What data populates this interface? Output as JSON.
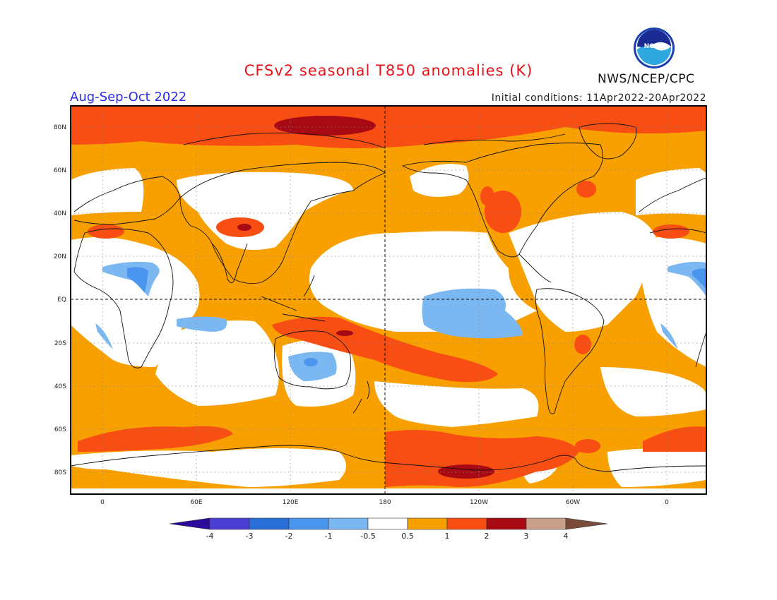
{
  "header": {
    "title": "CFSv2 seasonal T850 anomalies (K)",
    "period": "Aug-Sep-Oct 2022",
    "initial_conditions": "Initial conditions: 11Apr2022-20Apr2022",
    "organization": "NWS/NCEP/CPC",
    "logo_text": "NOAA",
    "logo_icon": "noaa-logo-icon"
  },
  "axes": {
    "lat_labels": [
      "80N",
      "60N",
      "40N",
      "20N",
      "EQ",
      "20S",
      "40S",
      "60S",
      "80S"
    ],
    "lon_labels": [
      "0",
      "60E",
      "120E",
      "180",
      "120W",
      "60W",
      "0"
    ]
  },
  "colorbar": {
    "labels": [
      "-4",
      "-3",
      "-2",
      "-1",
      "-0.5",
      "0.5",
      "1",
      "2",
      "3",
      "4"
    ],
    "colors": [
      "#2b0a9c",
      "#4a3fd2",
      "#2a6fd8",
      "#4a96ee",
      "#7bb8f2",
      "#ffffff",
      "#f8a000",
      "#f84e14",
      "#a80a14",
      "#c8a08c",
      "#7a4a3a"
    ]
  },
  "chart_data": {
    "type": "heatmap",
    "title": "CFSv2 seasonal T850 anomalies (K)",
    "subtitle": "Aug-Sep-Oct 2022",
    "xlabel": "",
    "ylabel": "",
    "x_range": [
      -20,
      380
    ],
    "y_range": [
      -90,
      90
    ],
    "x_ticks": [
      "0",
      "60E",
      "120E",
      "180",
      "120W",
      "60W",
      "0"
    ],
    "y_ticks": [
      "80N",
      "60N",
      "40N",
      "20N",
      "EQ",
      "20S",
      "40S",
      "60S",
      "80S"
    ],
    "units": "K",
    "contour_levels": [
      -4,
      -3,
      -2,
      -1,
      -0.5,
      0.5,
      1,
      2,
      3,
      4
    ],
    "grid": true
  }
}
